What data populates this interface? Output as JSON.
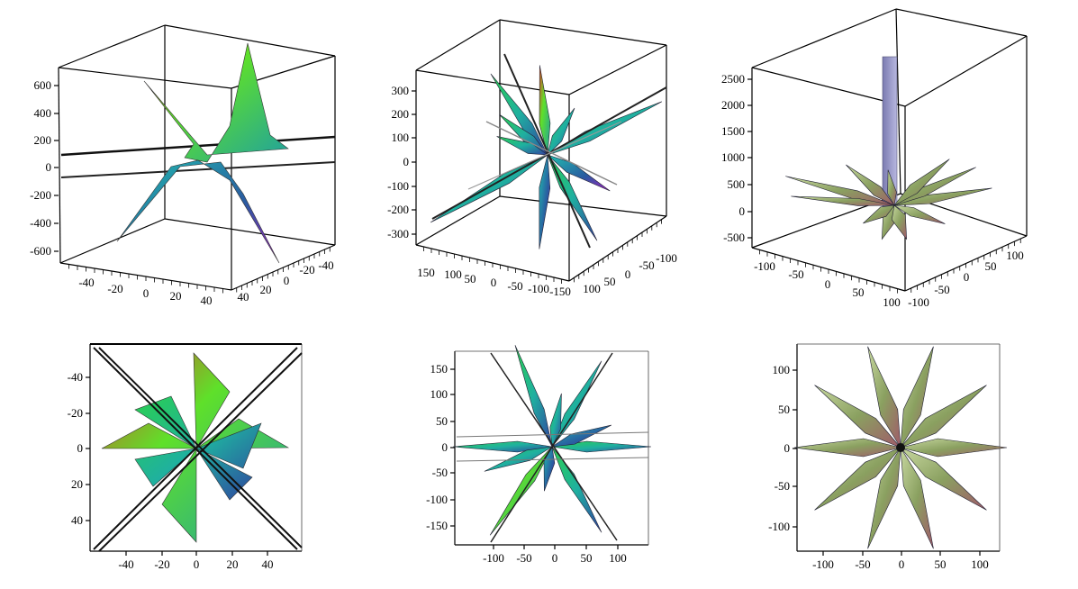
{
  "chart_data": [
    {
      "type": "surface",
      "view": "3d",
      "title": "",
      "z_ticks": [
        "600",
        "400",
        "200",
        "0",
        "-200",
        "-400",
        "-600"
      ],
      "x_ticks": [
        "-40",
        "-20",
        "0",
        "20",
        "40"
      ],
      "y_ticks": [
        "40",
        "20",
        "0",
        "-20",
        "-40"
      ],
      "xlim": [
        -50,
        50
      ],
      "ylim": [
        -50,
        50
      ],
      "zlim": [
        -650,
        650
      ]
    },
    {
      "type": "surface",
      "view": "3d",
      "title": "",
      "z_ticks": [
        "300",
        "200",
        "100",
        "0",
        "-100",
        "-200",
        "-300"
      ],
      "x_ticks": [
        "150",
        "100",
        "50",
        "0",
        "-50",
        "-100",
        "-150"
      ],
      "y_ticks": [
        "100",
        "50",
        "0",
        "-50",
        "-100"
      ],
      "xlim": [
        -160,
        160
      ],
      "ylim": [
        -130,
        130
      ],
      "zlim": [
        -350,
        380
      ]
    },
    {
      "type": "surface",
      "view": "3d",
      "title": "",
      "z_ticks": [
        "2500",
        "2000",
        "1500",
        "1000",
        "500",
        "0",
        "-500"
      ],
      "x_ticks": [
        "-100",
        "-50",
        "0",
        "50",
        "100"
      ],
      "y_ticks": [
        "-100",
        "-50",
        "0",
        "50",
        "100"
      ],
      "xlim": [
        -120,
        120
      ],
      "ylim": [
        -120,
        120
      ],
      "zlim": [
        -550,
        2600
      ]
    },
    {
      "type": "surface",
      "view": "top",
      "title": "",
      "y_ticks": [
        "-40",
        "-20",
        "0",
        "20",
        "40"
      ],
      "x_ticks": [
        "-40",
        "-20",
        "0",
        "20",
        "40"
      ],
      "xlim": [
        -55,
        55
      ],
      "ylim": [
        -55,
        55
      ]
    },
    {
      "type": "surface",
      "view": "top",
      "title": "",
      "y_ticks": [
        "150",
        "100",
        "50",
        "0",
        "-50",
        "-100",
        "-150"
      ],
      "x_ticks": [
        "-100",
        "-50",
        "0",
        "50",
        "100"
      ],
      "xlim": [
        -150,
        150
      ],
      "ylim": [
        -180,
        180
      ]
    },
    {
      "type": "surface",
      "view": "top",
      "title": "",
      "y_ticks": [
        "100",
        "50",
        "0",
        "-50",
        "-100"
      ],
      "x_ticks": [
        "-100",
        "-50",
        "0",
        "50",
        "100"
      ],
      "xlim": [
        -120,
        120
      ],
      "ylim": [
        -120,
        120
      ]
    }
  ]
}
